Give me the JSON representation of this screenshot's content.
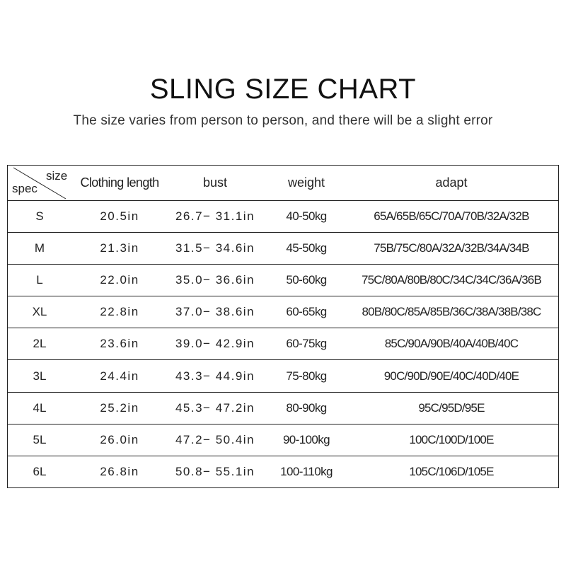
{
  "title": "SLING SIZE CHART",
  "subtitle": "The size varies from person to person, and there will be a slight error",
  "table": {
    "corner": {
      "top_right": "size",
      "bottom_left": "spec"
    },
    "headers": [
      "Clothing length",
      "bust",
      "weight",
      "adapt"
    ],
    "rows": [
      [
        "S",
        "20.5in",
        "26.7− 31.1in",
        "40-50kg",
        "65A/65B/65C/70A/70B/32A/32B"
      ],
      [
        "M",
        "21.3in",
        "31.5− 34.6in",
        "45-50kg",
        "75B/75C/80A/32A/32B/34A/34B"
      ],
      [
        "L",
        "22.0in",
        "35.0− 36.6in",
        "50-60kg",
        "75C/80A/80B/80C/34C/34C/36A/36B"
      ],
      [
        "XL",
        "22.8in",
        "37.0− 38.6in",
        "60-65kg",
        "80B/80C/85A/85B/36C/38A/38B/38C"
      ],
      [
        "2L",
        "23.6in",
        "39.0− 42.9in",
        "60-75kg",
        "85C/90A/90B/40A/40B/40C"
      ],
      [
        "3L",
        "24.4in",
        "43.3− 44.9in",
        "75-80kg",
        "90C/90D/90E/40C/40D/40E"
      ],
      [
        "4L",
        "25.2in",
        "45.3− 47.2in",
        "80-90kg",
        "95C/95D/95E"
      ],
      [
        "5L",
        "26.0in",
        "47.2− 50.4in",
        "90-100kg",
        "100C/100D/100E"
      ],
      [
        "6L",
        "26.8in",
        "50.8− 55.1in",
        "100-110kg",
        "105C/106D/105E"
      ]
    ]
  }
}
